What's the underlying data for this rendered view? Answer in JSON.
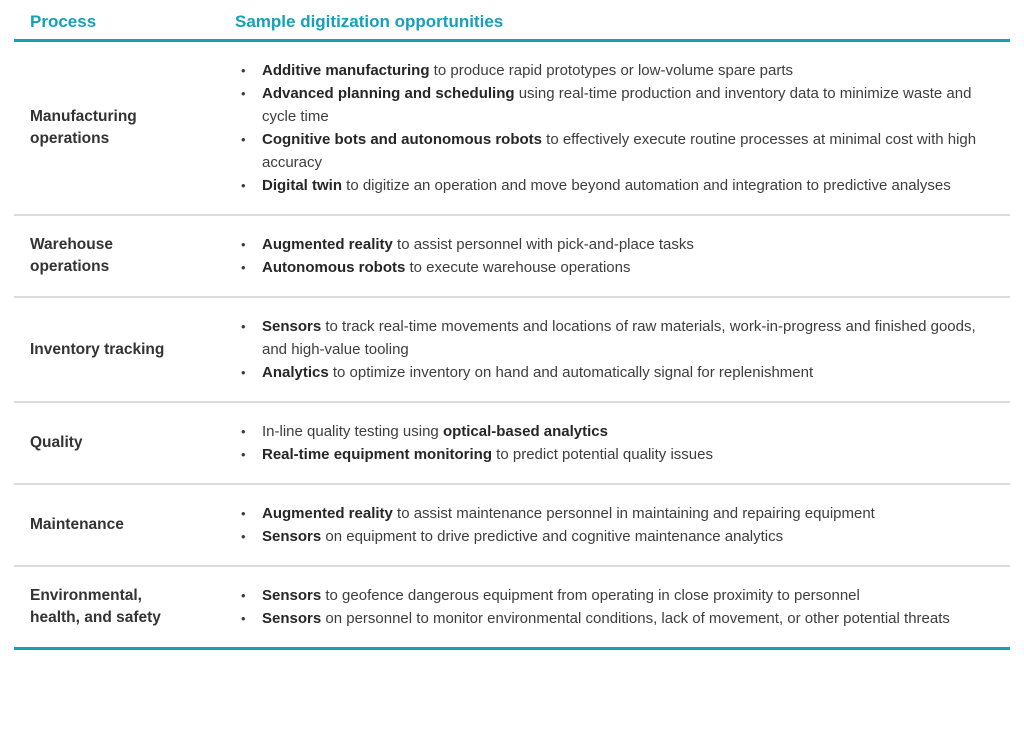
{
  "meta": {
    "accent_color": "#14a0ba",
    "divider_color": "#dcdcdc",
    "bullet_glyph": "•"
  },
  "table": {
    "headers": [
      {
        "label": "Process"
      },
      {
        "label": "Sample digitization opportunities"
      }
    ],
    "rows": [
      {
        "process": "Manufacturing operations",
        "bullets": [
          [
            {
              "text": "Additive manufacturing",
              "bold": true
            },
            {
              "text": " to produce rapid prototypes or low-volume spare parts",
              "bold": false
            }
          ],
          [
            {
              "text": "Advanced planning and scheduling",
              "bold": true
            },
            {
              "text": " using real-time production and inventory data to minimize waste and cycle time",
              "bold": false
            }
          ],
          [
            {
              "text": "Cognitive bots and autonomous robots",
              "bold": true
            },
            {
              "text": " to effectively execute routine processes at minimal cost with high accuracy",
              "bold": false
            }
          ],
          [
            {
              "text": "Digital twin",
              "bold": true
            },
            {
              "text": " to digitize an operation and move beyond automation and integration to predictive analyses",
              "bold": false
            }
          ]
        ]
      },
      {
        "process": "Warehouse operations",
        "bullets": [
          [
            {
              "text": "Augmented reality",
              "bold": true
            },
            {
              "text": " to assist personnel with pick-and-place tasks",
              "bold": false
            }
          ],
          [
            {
              "text": "Autonomous robots",
              "bold": true
            },
            {
              "text": " to execute warehouse operations",
              "bold": false
            }
          ]
        ]
      },
      {
        "process": "Inventory tracking",
        "bullets": [
          [
            {
              "text": "Sensors",
              "bold": true
            },
            {
              "text": " to track real-time movements and locations of raw materials, work-in-progress and finished goods, and high-value tooling",
              "bold": false
            }
          ],
          [
            {
              "text": "Analytics",
              "bold": true
            },
            {
              "text": " to optimize inventory on hand and automatically signal for replenishment",
              "bold": false
            }
          ]
        ]
      },
      {
        "process": "Quality",
        "bullets": [
          [
            {
              "text": "In-line quality testing using ",
              "bold": false
            },
            {
              "text": "optical-based analytics",
              "bold": true
            }
          ],
          [
            {
              "text": "Real-time equipment monitoring",
              "bold": true
            },
            {
              "text": " to predict potential quality issues",
              "bold": false
            }
          ]
        ]
      },
      {
        "process": "Maintenance",
        "bullets": [
          [
            {
              "text": "Augmented reality",
              "bold": true
            },
            {
              "text": " to assist maintenance personnel in maintaining and repairing equipment",
              "bold": false
            }
          ],
          [
            {
              "text": "Sensors",
              "bold": true
            },
            {
              "text": " on equipment to drive predictive and cognitive maintenance analytics",
              "bold": false
            }
          ]
        ]
      },
      {
        "process": "Environmental, health, and safety",
        "bullets": [
          [
            {
              "text": "Sensors",
              "bold": true
            },
            {
              "text": " to geofence dangerous equipment from operating in close proximity to personnel",
              "bold": false
            }
          ],
          [
            {
              "text": "Sensors",
              "bold": true
            },
            {
              "text": " on personnel to monitor environmental conditions, lack of movement, or other potential threats",
              "bold": false
            }
          ]
        ]
      }
    ]
  }
}
